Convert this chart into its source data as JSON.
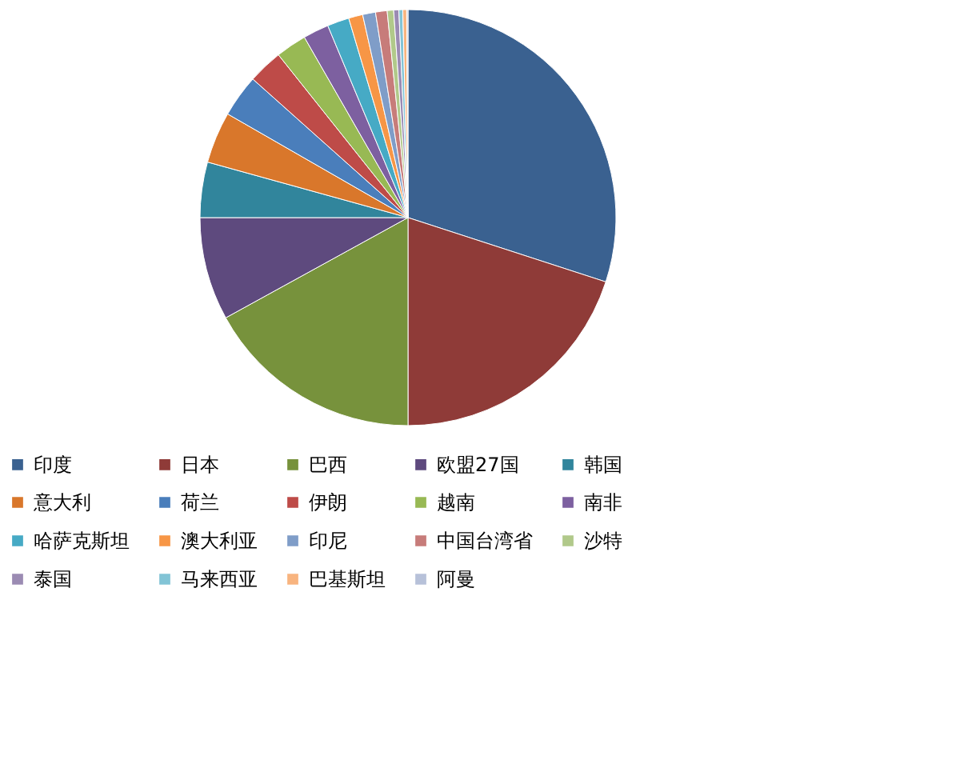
{
  "chart_data": {
    "type": "pie",
    "categories": [
      "印度",
      "日本",
      "巴西",
      "欧盟27国",
      "韩国",
      "意大利",
      "荷兰",
      "伊朗",
      "越南",
      "南非",
      "哈萨克斯坦",
      "澳大利亚",
      "印尼",
      "中国台湾省",
      "沙特",
      "泰国",
      "马来西亚",
      "巴基斯坦",
      "阿曼"
    ],
    "values": [
      30,
      20,
      17,
      8,
      4.3,
      4,
      3.3,
      2.7,
      2.4,
      2,
      1.7,
      1.1,
      1,
      0.9,
      0.5,
      0.4,
      0.3,
      0.3,
      0.1
    ],
    "colors": [
      "#3a6190",
      "#8f3b38",
      "#77923c",
      "#5e4a7e",
      "#31859c",
      "#d9772b",
      "#4a7ebb",
      "#be4b48",
      "#98b954",
      "#7d60a0",
      "#46aac5",
      "#f79646",
      "#7f9dc8",
      "#c77c7a",
      "#b1c98a",
      "#9b8bb3",
      "#82c4d6",
      "#f8b47f",
      "#b7c1d9"
    ],
    "legend": "bottom"
  }
}
